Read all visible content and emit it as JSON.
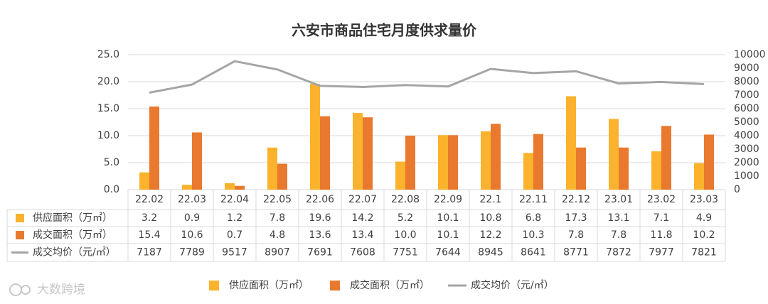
{
  "chart_data": {
    "type": "bar",
    "title": "六安市商品住宅月度供求量价",
    "categories": [
      "22.02",
      "22.03",
      "22.04",
      "22.05",
      "22.06",
      "22.07",
      "22.08",
      "22.09",
      "22.1",
      "22.11",
      "22.12",
      "23.01",
      "23.02",
      "23.03"
    ],
    "series": [
      {
        "name": "供应面积（万㎡）",
        "color": "#fbb22c",
        "values": [
          3.2,
          0.9,
          1.2,
          7.8,
          19.6,
          14.2,
          5.2,
          10.1,
          10.8,
          6.8,
          17.3,
          13.1,
          7.1,
          4.9
        ]
      },
      {
        "name": "成交面积（万㎡）",
        "color": "#e8792f",
        "values": [
          15.4,
          10.6,
          0.7,
          4.8,
          13.6,
          13.4,
          10,
          10.1,
          12.2,
          10.3,
          7.8,
          7.8,
          11.8,
          10.2
        ],
        "value_labels": [
          "15.4",
          "10.6",
          "0.7",
          "4.8",
          "13.6",
          "13.4",
          "10.0",
          "10.1",
          "12.2",
          "10.3",
          "7.8",
          "7.8",
          "11.8",
          "10.2"
        ]
      },
      {
        "name": "成交均价（元/㎡）",
        "color": "#a5a5a5",
        "type": "line",
        "axis": "y2",
        "values": [
          7187,
          7789,
          9517,
          8907,
          7691,
          7608,
          7751,
          7644,
          8945,
          8641,
          8771,
          7872,
          7977,
          7821
        ]
      }
    ],
    "ylim": [
      0,
      25
    ],
    "yticks": [
      {
        "value": 0,
        "label": "0.0"
      },
      {
        "value": 5,
        "label": "5.0"
      },
      {
        "value": 10,
        "label": "10.0"
      },
      {
        "value": 15,
        "label": "15.0"
      },
      {
        "value": 20,
        "label": "20.0"
      },
      {
        "value": 25,
        "label": "25.0"
      }
    ],
    "y2lim": [
      0,
      10000
    ],
    "y2ticks": [
      0,
      1000,
      2000,
      3000,
      4000,
      5000,
      6000,
      7000,
      8000,
      9000,
      10000
    ],
    "grid": true,
    "legend": "bottom",
    "watermark": "大数跨境"
  }
}
